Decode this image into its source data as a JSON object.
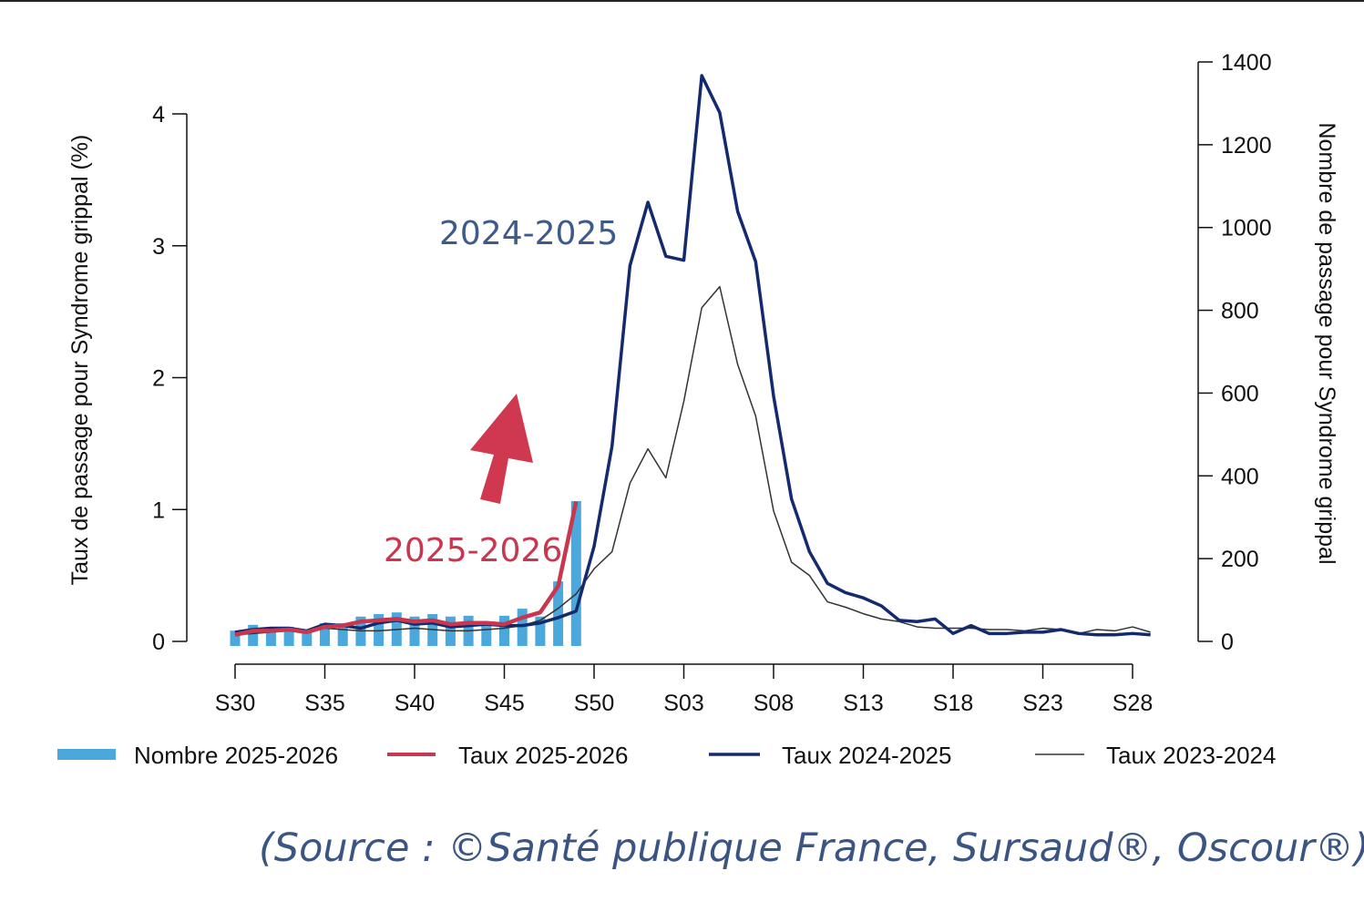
{
  "chart_data": {
    "type": "bar+line",
    "title": "",
    "ylabel_left": "Taux de passage pour Syndrome grippal (%)",
    "ylabel_right": "Nombre de passage  pour Syndrome grippal",
    "ylim_left": [
      0,
      4.4
    ],
    "ylim_right": [
      0,
      1400
    ],
    "yticks_left": [
      "0",
      "1",
      "2",
      "3",
      "4"
    ],
    "yticks_right": [
      "0",
      "200",
      "400",
      "600",
      "800",
      "1000",
      "1200",
      "1400"
    ],
    "xticks": [
      "S30",
      "S35",
      "S40",
      "S45",
      "S50",
      "S03",
      "S08",
      "S13",
      "S18",
      "S23",
      "S28"
    ],
    "weeks": [
      "S30",
      "S31",
      "S32",
      "S33",
      "S34",
      "S35",
      "S36",
      "S37",
      "S38",
      "S39",
      "S40",
      "S41",
      "S42",
      "S43",
      "S44",
      "S45",
      "S46",
      "S47",
      "S48",
      "S49",
      "S50",
      "S51",
      "S52",
      "S01",
      "S02",
      "S03",
      "S04",
      "S05",
      "S06",
      "S07",
      "S08",
      "S09",
      "S10",
      "S11",
      "S12",
      "S13",
      "S14",
      "S15",
      "S16",
      "S17",
      "S18",
      "S19",
      "S20",
      "S21",
      "S22",
      "S23",
      "S24",
      "S25",
      "S26",
      "S27",
      "S28",
      "S29"
    ],
    "grid": false,
    "legend_placement": "bottom",
    "series": [
      {
        "name": "Nombre 2025-2026",
        "type": "bar",
        "axis": "right",
        "color": "#4aa8dc",
        "values": [
          26,
          40,
          33,
          35,
          26,
          44,
          44,
          60,
          66,
          70,
          60,
          66,
          60,
          62,
          46,
          62,
          79,
          60,
          145,
          339
        ]
      },
      {
        "name": "Taux 2025-2026",
        "type": "line",
        "axis": "left",
        "color": "#c8374f",
        "values": [
          0.05,
          0.08,
          0.08,
          0.09,
          0.07,
          0.11,
          0.12,
          0.15,
          0.16,
          0.17,
          0.15,
          0.16,
          0.13,
          0.14,
          0.14,
          0.13,
          0.18,
          0.22,
          0.42,
          1.06
        ]
      },
      {
        "name": "Taux 2024-2025",
        "type": "line",
        "axis": "left",
        "color": "#142a6e",
        "values": [
          0.07,
          0.09,
          0.1,
          0.1,
          0.08,
          0.13,
          0.12,
          0.1,
          0.14,
          0.16,
          0.13,
          0.14,
          0.11,
          0.12,
          0.13,
          0.12,
          0.12,
          0.14,
          0.18,
          0.23,
          0.72,
          1.48,
          2.85,
          3.33,
          2.92,
          2.89,
          4.29,
          4.01,
          3.26,
          2.88,
          1.86,
          1.08,
          0.68,
          0.44,
          0.37,
          0.33,
          0.27,
          0.16,
          0.15,
          0.17,
          0.06,
          0.12,
          0.06,
          0.06,
          0.07,
          0.07,
          0.09,
          0.06,
          0.05,
          0.05,
          0.06,
          0.05
        ]
      },
      {
        "name": "Taux 2023-2024",
        "type": "line",
        "axis": "left",
        "color": "#333333",
        "values": [
          0.05,
          0.06,
          0.07,
          0.08,
          0.08,
          0.1,
          0.09,
          0.08,
          0.08,
          0.09,
          0.1,
          0.09,
          0.08,
          0.08,
          0.09,
          0.1,
          0.12,
          0.16,
          0.25,
          0.36,
          0.55,
          0.68,
          1.2,
          1.46,
          1.24,
          1.82,
          2.53,
          2.69,
          2.1,
          1.71,
          0.99,
          0.6,
          0.5,
          0.3,
          0.26,
          0.21,
          0.17,
          0.15,
          0.11,
          0.1,
          0.1,
          0.1,
          0.09,
          0.09,
          0.08,
          0.1,
          0.09,
          0.06,
          0.09,
          0.08,
          0.11,
          0.07
        ]
      }
    ],
    "annotations": [
      {
        "text": "2024-2025",
        "color": "#3d5a8c"
      },
      {
        "text": "2025-2026",
        "color": "#c8374f"
      }
    ],
    "arrow": {
      "direction": "up",
      "color": "#d0384f"
    }
  },
  "source": "(Source : ©Santé publique France, Sursaud®, Oscour®)"
}
